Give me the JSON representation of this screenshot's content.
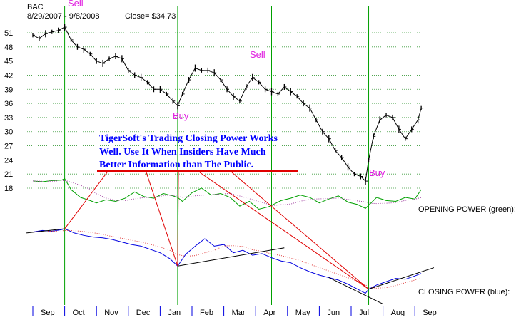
{
  "header": {
    "ticker": "BAC",
    "date_range": "8/29/2007 - 9/8/2008",
    "close_label": "Close= $34.73"
  },
  "signals": [
    {
      "label": "Sell",
      "color": "#e020e0"
    },
    {
      "label": "Sell",
      "color": "#e020e0"
    },
    {
      "label": "Buy",
      "color": "#e020e0"
    },
    {
      "label": "Buy",
      "color": "#e020e0"
    }
  ],
  "annotation": {
    "lines": [
      "TigerSoft's Trading Closing Power Works",
      "Well. Use It When Insiders Have Much",
      "Better Information than The Public."
    ],
    "color": "#0000ff",
    "underline_color": "#e00000"
  },
  "indicator_labels": {
    "opening_power": "OPENING POWER (green):",
    "closing_power": "CLOSING POWER (blue):"
  },
  "chart_data": {
    "type": "line",
    "title": "BAC",
    "subtitle": "8/29/2007 - 9/8/2008   Close= $34.73",
    "y_ticks": [
      18,
      21,
      24,
      27,
      30,
      33,
      36,
      39,
      42,
      45,
      48,
      51
    ],
    "ylim": [
      18,
      53
    ],
    "grid": true,
    "x_tick_labels": [
      "Sep",
      "Oct",
      "Nov",
      "Dec",
      "Jan",
      "Feb",
      "Mar",
      "Apr",
      "May",
      "Jun",
      "Jul",
      "Aug",
      "Sep"
    ],
    "x_range_months": [
      0,
      12.3
    ],
    "vertical_signal_lines_months": [
      1.0,
      4.55,
      7.5,
      10.55
    ],
    "series": [
      {
        "role": "price",
        "color": "#000000",
        "x": [
          0.0,
          0.2,
          0.4,
          0.6,
          0.8,
          1.0,
          1.2,
          1.4,
          1.6,
          1.8,
          2.0,
          2.2,
          2.4,
          2.6,
          2.8,
          3.0,
          3.2,
          3.4,
          3.6,
          3.8,
          4.0,
          4.2,
          4.4,
          4.55,
          4.7,
          4.9,
          5.1,
          5.3,
          5.5,
          5.7,
          5.9,
          6.1,
          6.3,
          6.5,
          6.7,
          6.9,
          7.1,
          7.3,
          7.5,
          7.7,
          7.9,
          8.1,
          8.3,
          8.5,
          8.7,
          8.9,
          9.1,
          9.3,
          9.5,
          9.7,
          9.9,
          10.1,
          10.3,
          10.45,
          10.55,
          10.7,
          10.9,
          11.1,
          11.3,
          11.5,
          11.7,
          11.9,
          12.1,
          12.2
        ],
        "values": [
          50.5,
          49.8,
          50.8,
          51.2,
          51.5,
          52.2,
          49.5,
          48.0,
          47.5,
          46.5,
          45.0,
          44.5,
          45.5,
          46.0,
          45.5,
          43.0,
          42.0,
          41.5,
          40.5,
          39.0,
          39.0,
          38.0,
          36.5,
          35.5,
          38.0,
          41.0,
          43.5,
          43.0,
          43.0,
          42.5,
          41.0,
          39.0,
          37.5,
          36.5,
          39.5,
          41.5,
          40.5,
          39.0,
          38.5,
          38.0,
          39.5,
          38.5,
          37.5,
          36.0,
          35.0,
          32.5,
          30.0,
          28.5,
          26.0,
          24.5,
          22.5,
          21.0,
          20.5,
          19.5,
          24.0,
          29.0,
          32.5,
          33.5,
          33.0,
          30.5,
          28.5,
          30.5,
          32.5,
          35.0
        ]
      },
      {
        "name": "OPENING POWER (green)",
        "color": "#00a000",
        "x": [
          0.0,
          0.3,
          0.6,
          0.9,
          1.0,
          1.2,
          1.5,
          1.8,
          2.0,
          2.3,
          2.6,
          2.9,
          3.2,
          3.5,
          3.8,
          4.1,
          4.4,
          4.55,
          4.7,
          5.0,
          5.3,
          5.6,
          5.9,
          6.2,
          6.5,
          6.8,
          7.1,
          7.4,
          7.5,
          7.8,
          8.1,
          8.4,
          8.7,
          9.0,
          9.3,
          9.6,
          9.9,
          10.2,
          10.45,
          10.55,
          10.8,
          11.1,
          11.4,
          11.7,
          12.0,
          12.2
        ],
        "values": [
          0.62,
          0.6,
          0.63,
          0.64,
          0.68,
          0.4,
          0.2,
          0.12,
          0.06,
          0.14,
          0.1,
          0.18,
          0.34,
          0.22,
          0.18,
          0.3,
          0.24,
          0.2,
          0.1,
          0.32,
          0.44,
          0.26,
          0.3,
          0.2,
          -0.02,
          0.1,
          -0.1,
          -0.04,
          0.0,
          0.12,
          0.18,
          0.26,
          0.2,
          0.06,
          0.16,
          0.24,
          0.08,
          0.02,
          -0.08,
          0.0,
          0.2,
          0.12,
          0.1,
          0.2,
          0.16,
          0.4
        ]
      },
      {
        "name": "CLOSING POWER (blue)",
        "color": "#0000e0",
        "x": [
          0.0,
          0.3,
          0.6,
          0.9,
          1.0,
          1.3,
          1.6,
          1.9,
          2.2,
          2.5,
          2.8,
          3.1,
          3.4,
          3.7,
          4.0,
          4.3,
          4.55,
          4.8,
          5.1,
          5.4,
          5.7,
          6.0,
          6.3,
          6.6,
          6.9,
          7.2,
          7.5,
          7.8,
          8.1,
          8.4,
          8.7,
          9.0,
          9.3,
          9.6,
          9.9,
          10.2,
          10.45,
          10.55,
          10.8,
          11.1,
          11.4,
          11.7,
          12.0,
          12.2
        ],
        "values": [
          0.04,
          0.08,
          0.06,
          0.1,
          0.12,
          0.02,
          -0.04,
          -0.08,
          -0.1,
          -0.14,
          -0.2,
          -0.26,
          -0.3,
          -0.38,
          -0.46,
          -0.6,
          -0.78,
          -0.5,
          -0.3,
          -0.12,
          -0.3,
          -0.26,
          -0.46,
          -0.4,
          -0.52,
          -0.48,
          -0.58,
          -0.66,
          -0.7,
          -0.82,
          -0.92,
          -1.0,
          -1.06,
          -1.12,
          -1.22,
          -1.34,
          -1.44,
          -1.34,
          -1.24,
          -1.16,
          -1.08,
          -1.1,
          -1.02,
          -0.96
        ]
      }
    ]
  }
}
